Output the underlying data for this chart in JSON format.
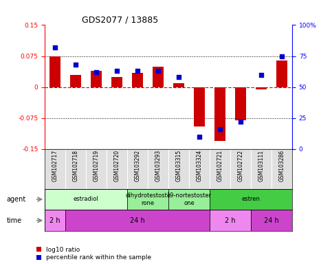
{
  "title": "GDS2077 / 13885",
  "samples": [
    "GSM102717",
    "GSM102718",
    "GSM102719",
    "GSM102720",
    "GSM103292",
    "GSM103293",
    "GSM103315",
    "GSM103324",
    "GSM102721",
    "GSM102722",
    "GSM103111",
    "GSM103286"
  ],
  "log10_ratio": [
    0.075,
    0.03,
    0.04,
    0.025,
    0.035,
    0.05,
    0.01,
    -0.095,
    -0.13,
    -0.08,
    -0.005,
    0.065
  ],
  "percentile": [
    82,
    68,
    62,
    63,
    63,
    63,
    58,
    10,
    16,
    22,
    60,
    75
  ],
  "ylim": [
    -0.15,
    0.15
  ],
  "yticks": [
    -0.15,
    -0.075,
    0,
    0.075,
    0.15
  ],
  "ytick_labels_left": [
    "-0.15",
    "-0.075",
    "0",
    "0.075",
    "0.15"
  ],
  "ytick_labels_right": [
    "0",
    "25",
    "50",
    "75",
    "100%"
  ],
  "bar_color": "#cc0000",
  "dot_color": "#0000cc",
  "hline_color": "#cc0000",
  "dotted_lines": [
    -0.075,
    0.075
  ],
  "agent_groups": [
    {
      "label": "estradiol",
      "start": 0,
      "end": 4,
      "color": "#ccffcc"
    },
    {
      "label": "dihydrotestoste\nrone",
      "start": 4,
      "end": 6,
      "color": "#99ee99"
    },
    {
      "label": "19-nortestoster\none",
      "start": 6,
      "end": 8,
      "color": "#99ee99"
    },
    {
      "label": "estren",
      "start": 8,
      "end": 12,
      "color": "#44cc44"
    }
  ],
  "time_groups": [
    {
      "label": "2 h",
      "start": 0,
      "end": 1,
      "color": "#ee88ee"
    },
    {
      "label": "24 h",
      "start": 1,
      "end": 8,
      "color": "#cc44cc"
    },
    {
      "label": "2 h",
      "start": 8,
      "end": 10,
      "color": "#ee88ee"
    },
    {
      "label": "24 h",
      "start": 10,
      "end": 12,
      "color": "#cc44cc"
    }
  ],
  "legend_red": "log10 ratio",
  "legend_blue": "percentile rank within the sample",
  "bar_width": 0.55,
  "dot_size": 25,
  "background_color": "#ffffff"
}
